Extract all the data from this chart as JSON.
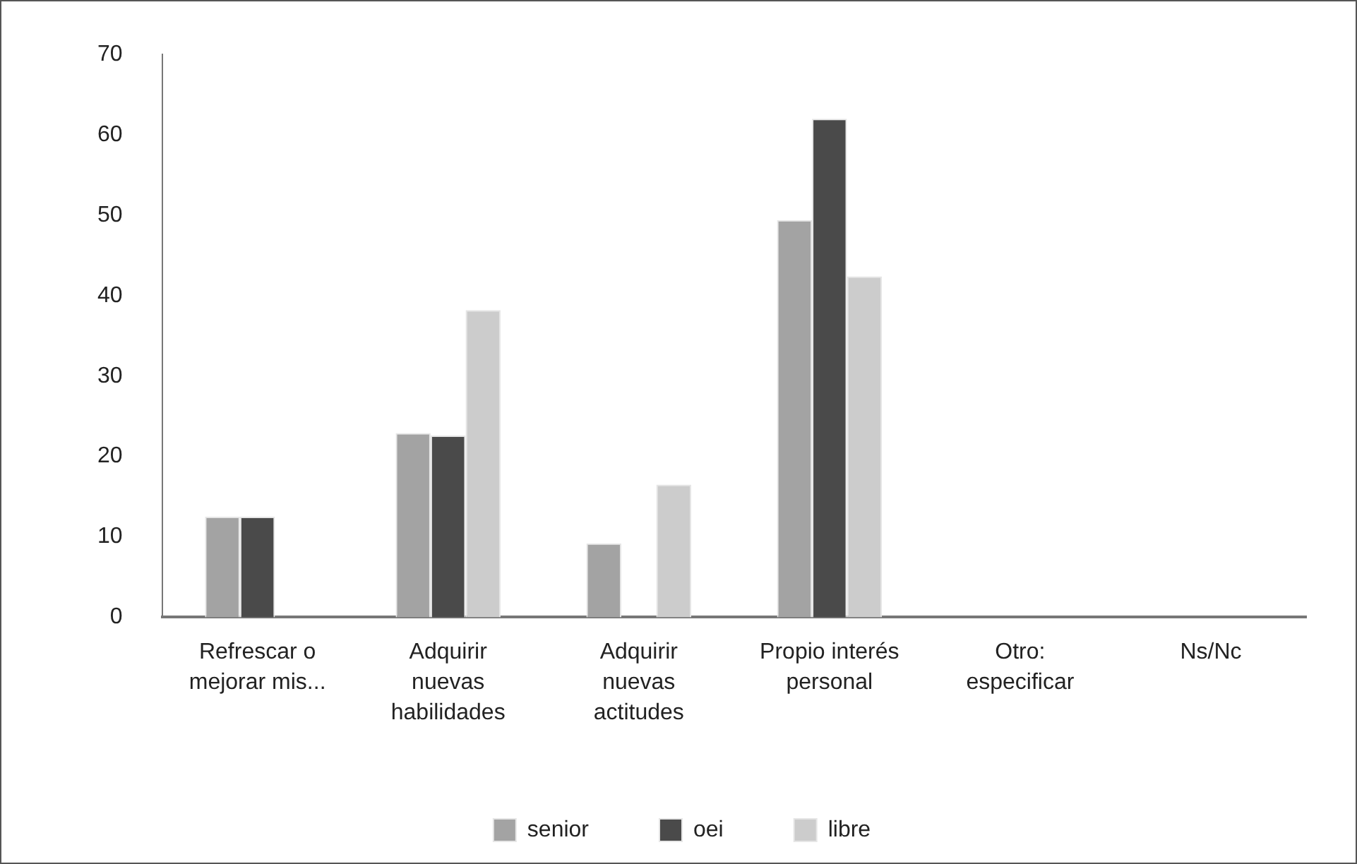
{
  "chart_data": {
    "type": "bar",
    "categories": [
      "Refrescar o mejorar mis...",
      "Adquirir nuevas habilidades",
      "Adquirir nuevas actitudes",
      "Propio interés personal",
      "Otro: especificar",
      "Ns/Nc"
    ],
    "series": [
      {
        "name": "senior",
        "color": "#a3a3a3",
        "values": [
          12.5,
          22.9,
          9.2,
          49.4,
          0,
          0
        ]
      },
      {
        "name": "oei",
        "color": "#4a4a4a",
        "values": [
          12.5,
          22.6,
          0,
          62.0,
          0,
          0
        ]
      },
      {
        "name": "libre",
        "color": "#cccccc",
        "values": [
          0,
          38.2,
          16.5,
          42.4,
          0,
          0
        ]
      }
    ],
    "ylim": [
      0,
      70
    ],
    "yticks": [
      0,
      10,
      20,
      30,
      40,
      50,
      60,
      70
    ],
    "grid": false,
    "legend": "bottom"
  }
}
